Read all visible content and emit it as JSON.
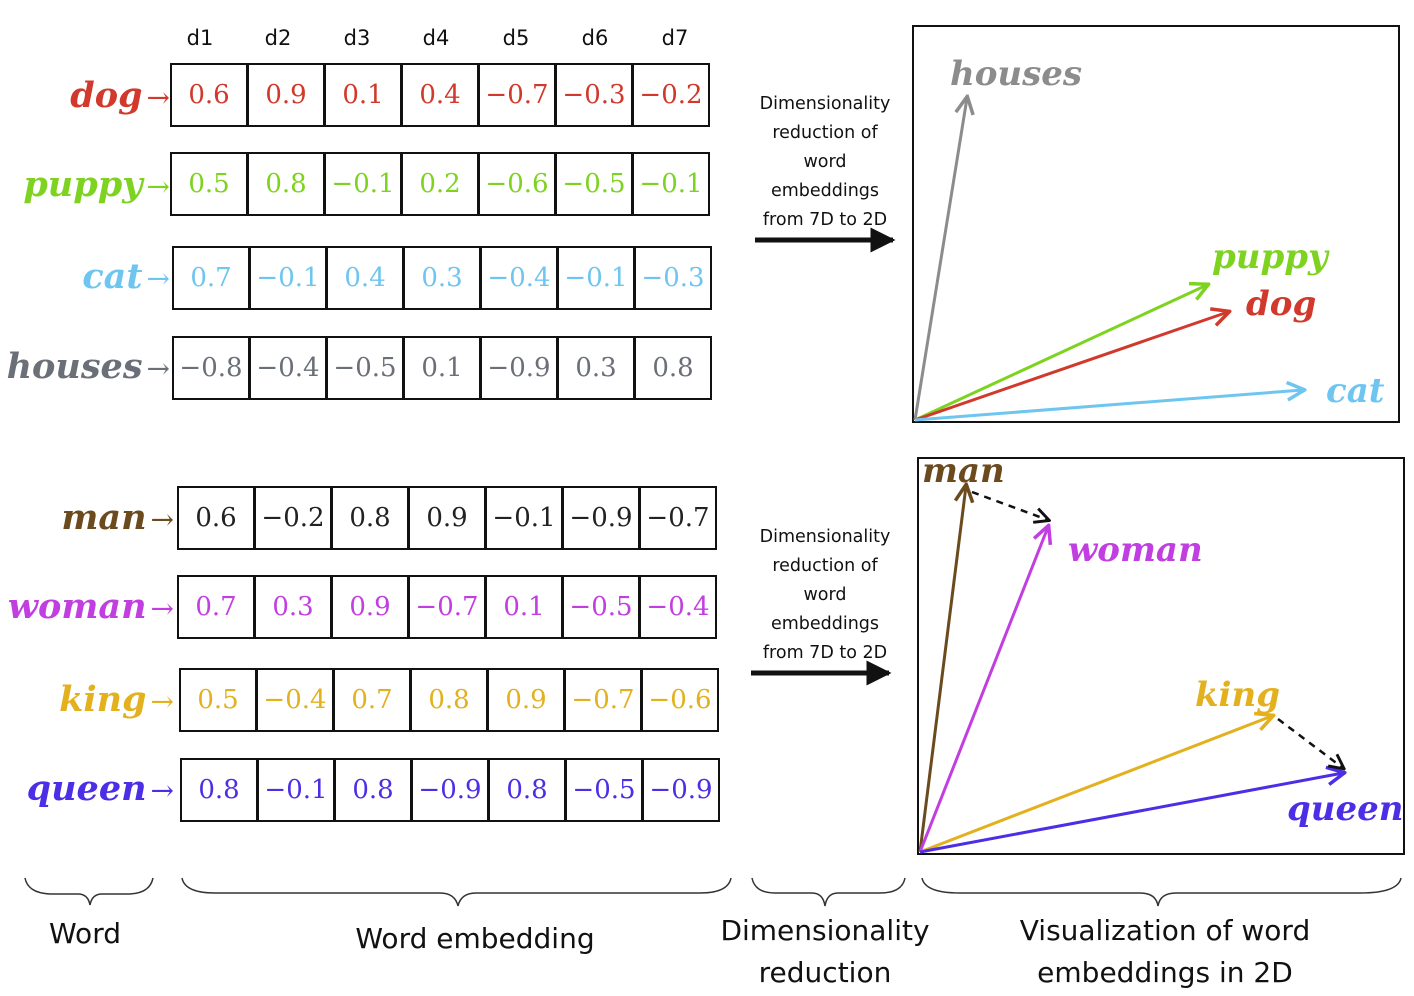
{
  "dimension_headers": [
    "d1",
    "d2",
    "d3",
    "d4",
    "d5",
    "d6",
    "d7"
  ],
  "groups": [
    {
      "rows": [
        {
          "word": "dog",
          "arrow": "→",
          "color": "#d0392b",
          "values": [
            "0.6",
            "0.9",
            "0.1",
            "0.4",
            "−0.7",
            "−0.3",
            "−0.2"
          ]
        },
        {
          "word": "puppy",
          "arrow": "→",
          "color": "#7ed321",
          "values": [
            "0.5",
            "0.8",
            "−0.1",
            "0.2",
            "−0.6",
            "−0.5",
            "−0.1"
          ]
        },
        {
          "word": "cat",
          "arrow": "→",
          "color": "#6ec6f0",
          "values": [
            "0.7",
            "−0.1",
            "0.4",
            "0.3",
            "−0.4",
            "−0.1",
            "−0.3"
          ]
        },
        {
          "word": "houses",
          "arrow": "→",
          "color": "#6b6f78",
          "values": [
            "−0.8",
            "−0.4",
            "−0.5",
            "0.1",
            "−0.9",
            "0.3",
            "0.8"
          ]
        }
      ],
      "reduction_note": [
        "Dimensionality",
        "reduction of",
        "word",
        "embeddings",
        "from 7D to 2D"
      ],
      "vectors": [
        {
          "label": "houses",
          "color": "#8c8c8c"
        },
        {
          "label": "puppy",
          "color": "#7ed321"
        },
        {
          "label": "dog",
          "color": "#d0392b"
        },
        {
          "label": "cat",
          "color": "#6ec6f0"
        }
      ]
    },
    {
      "rows": [
        {
          "word": "man",
          "arrow": "→",
          "color": "#6b4a1e",
          "values": [
            "0.6",
            "−0.2",
            "0.8",
            "0.9",
            "−0.1",
            "−0.9",
            "−0.7"
          ]
        },
        {
          "word": "woman",
          "arrow": "→",
          "color": "#c13ee0",
          "values": [
            "0.7",
            "0.3",
            "0.9",
            "−0.7",
            "0.1",
            "−0.5",
            "−0.4"
          ]
        },
        {
          "word": "king",
          "arrow": "→",
          "color": "#e3b11e",
          "values": [
            "0.5",
            "−0.4",
            "0.7",
            "0.8",
            "0.9",
            "−0.7",
            "−0.6"
          ]
        },
        {
          "word": "queen",
          "arrow": "→",
          "color": "#4b2ee6",
          "values": [
            "0.8",
            "−0.1",
            "0.8",
            "−0.9",
            "0.8",
            "−0.5",
            "−0.9"
          ]
        }
      ],
      "reduction_note": [
        "Dimensionality",
        "reduction of",
        "word",
        "embeddings",
        "from 7D to 2D"
      ],
      "vectors": [
        {
          "label": "man",
          "color": "#6b4a1e"
        },
        {
          "label": "woman",
          "color": "#c13ee0"
        },
        {
          "label": "king",
          "color": "#e3b11e"
        },
        {
          "label": "queen",
          "color": "#4b2ee6"
        }
      ]
    }
  ],
  "footer": {
    "word": "Word",
    "word_embedding": "Word embedding",
    "dim_reduction_line1": "Dimensionality",
    "dim_reduction_line2": "reduction",
    "visualization_line1": "Visualization of word",
    "visualization_line2": "embeddings  in 2D"
  },
  "colors": {
    "box_border": "#111111",
    "dashed_arrow": "#111111"
  }
}
